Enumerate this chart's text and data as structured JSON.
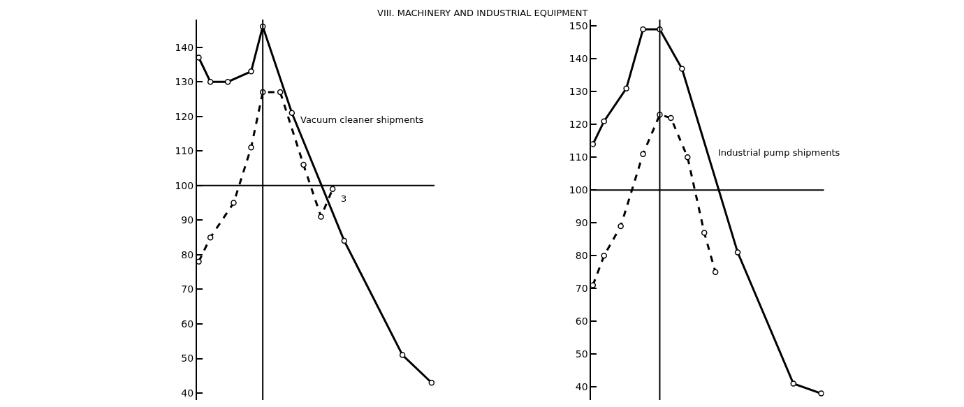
{
  "chart_data": [
    {
      "type": "line",
      "title": "VIII. MACHINERY AND INDUSTRIAL EQUIPMENT",
      "categories": [
        null,
        null,
        null,
        null,
        null,
        null,
        null,
        null,
        null,
        null,
        null,
        null,
        null,
        null,
        null,
        null,
        null,
        null,
        null,
        null,
        null,
        null,
        null,
        null,
        null,
        null,
        null,
        null,
        null,
        null,
        null,
        null,
        null,
        null,
        null,
        null,
        null,
        null,
        null,
        null,
        null
      ],
      "series": [
        {
          "color": "#000000",
          "line_style": "solid",
          "values": [
            137,
            null,
            130,
            null,
            null,
            130,
            null,
            null,
            null,
            133,
            null,
            146,
            null,
            null,
            null,
            null,
            121,
            null,
            null,
            null,
            null,
            null,
            null,
            null,
            null,
            84,
            null,
            null,
            null,
            null,
            null,
            null,
            null,
            null,
            null,
            51,
            null,
            null,
            null,
            null,
            43
          ]
        },
        {
          "color": "#000000",
          "line_style": "dashed",
          "values": [
            78,
            null,
            85,
            null,
            null,
            null,
            95,
            null,
            null,
            111,
            null,
            127,
            null,
            null,
            127,
            null,
            null,
            null,
            106,
            null,
            null,
            91,
            null,
            99,
            null,
            null,
            null,
            null,
            null,
            null,
            null,
            null,
            null,
            null,
            null,
            null,
            null,
            null,
            null,
            null,
            null
          ]
        }
      ],
      "ylim": [
        38,
        148
      ],
      "yticks": [
        40,
        50,
        60,
        70,
        80,
        90,
        100,
        110,
        120,
        130,
        140
      ],
      "tick_labels": "y",
      "marker": "circle",
      "ref_lines": [
        {
          "axis": "y",
          "value": 100
        }
      ],
      "annotations": [
        "Vacuum cleaner shipments",
        "3"
      ]
    },
    {
      "type": "line",
      "categories": [
        null,
        null,
        null,
        null,
        null,
        null,
        null,
        null,
        null,
        null,
        null,
        null,
        null,
        null,
        null,
        null,
        null,
        null,
        null,
        null,
        null,
        null,
        null,
        null,
        null,
        null,
        null,
        null,
        null,
        null,
        null,
        null,
        null,
        null,
        null,
        null,
        null,
        null,
        null,
        null,
        null,
        null
      ],
      "series": [
        {
          "color": "#000000",
          "line_style": "solid",
          "values": [
            114,
            null,
            121,
            null,
            null,
            null,
            131,
            null,
            null,
            149,
            null,
            null,
            149,
            null,
            null,
            null,
            137,
            null,
            null,
            null,
            null,
            null,
            null,
            null,
            null,
            null,
            81,
            null,
            null,
            null,
            null,
            null,
            null,
            null,
            null,
            null,
            41,
            null,
            null,
            null,
            null,
            38
          ]
        },
        {
          "color": "#000000",
          "line_style": "dashed",
          "values": [
            71,
            null,
            80,
            null,
            null,
            89,
            null,
            null,
            null,
            111,
            null,
            null,
            123,
            null,
            122,
            null,
            null,
            110,
            null,
            null,
            87,
            null,
            75,
            null,
            null,
            null,
            null,
            null,
            null,
            null,
            null,
            null,
            null,
            null,
            null,
            null,
            null,
            null,
            null,
            null,
            null,
            null
          ]
        }
      ],
      "ylim": [
        36,
        152
      ],
      "yticks": [
        40,
        50,
        60,
        70,
        80,
        90,
        100,
        110,
        120,
        130,
        140,
        150
      ],
      "tick_labels": "y",
      "marker": "circle",
      "ref_lines": [
        {
          "axis": "y",
          "value": 100
        }
      ],
      "annotations": [
        "Industrial pump shipments"
      ]
    }
  ]
}
